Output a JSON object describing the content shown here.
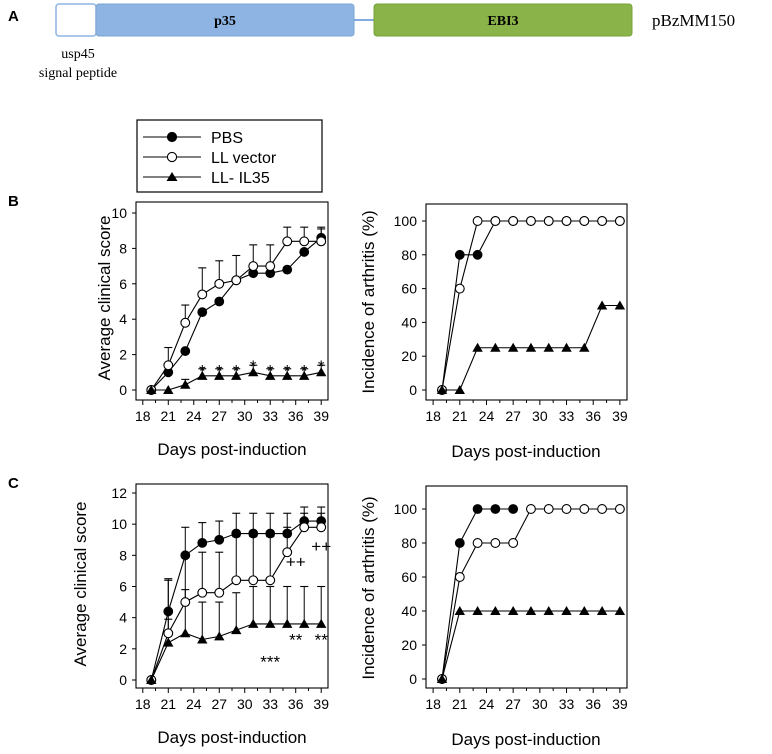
{
  "panel_labels": {
    "a": "A",
    "b": "B",
    "c": "C"
  },
  "construct": {
    "p35_label": "p35",
    "ebi3_label": "EBI3",
    "plasmid_name": "pBzMM150",
    "signal_line1": "usp45",
    "signal_line2": "signal peptide",
    "colors": {
      "signal": "#ffffff",
      "p35": "#8eb4e3",
      "ebi3": "#8ab449",
      "linker": "#5b8fd6"
    }
  },
  "legend": {
    "items": [
      {
        "label": "PBS",
        "marker": "filled-circle"
      },
      {
        "label": "LL vector",
        "marker": "open-circle"
      },
      {
        "label": "LL- IL35",
        "marker": "filled-triangle"
      }
    ]
  },
  "chart_data": [
    {
      "id": "B-score",
      "type": "line",
      "xlabel": "Days post-induction",
      "ylabel": "Average clinical score",
      "ylim": [
        0,
        10
      ],
      "yticks": [
        0,
        2,
        4,
        6,
        8,
        10
      ],
      "xticks": [
        18,
        21,
        24,
        27,
        30,
        33,
        36,
        39
      ],
      "xlim": [
        17.2,
        39.8
      ],
      "series": [
        {
          "name": "PBS",
          "marker": "filled-circle",
          "x": [
            19,
            21,
            23,
            25,
            27,
            29,
            31,
            33,
            35,
            37,
            39
          ],
          "y": [
            0,
            1.0,
            2.2,
            4.4,
            5.0,
            6.2,
            6.6,
            6.6,
            6.8,
            7.8,
            8.6
          ],
          "err": [
            0,
            0,
            0,
            0,
            0,
            0,
            0,
            0,
            0,
            0,
            0.5
          ]
        },
        {
          "name": "LL vector",
          "marker": "open-circle",
          "x": [
            19,
            21,
            23,
            25,
            27,
            29,
            31,
            33,
            35,
            37,
            39
          ],
          "y": [
            0,
            1.4,
            3.8,
            5.4,
            6.0,
            6.2,
            7.0,
            7.0,
            8.4,
            8.4,
            8.4
          ],
          "err": [
            0,
            1.0,
            1.0,
            1.5,
            1.3,
            1.4,
            1.2,
            1.2,
            0.8,
            0.8,
            0.8
          ]
        },
        {
          "name": "LL- IL35",
          "marker": "filled-triangle",
          "x": [
            19,
            21,
            23,
            25,
            27,
            29,
            31,
            33,
            35,
            37,
            39
          ],
          "y": [
            0,
            0,
            0.3,
            0.8,
            0.8,
            0.8,
            1.0,
            0.8,
            0.8,
            0.8,
            1.0
          ],
          "err": [
            0,
            0,
            0.3,
            0.4,
            0.4,
            0.4,
            0.4,
            0.4,
            0.4,
            0.4,
            0.4
          ]
        }
      ],
      "annotations": [
        {
          "text": "*",
          "x": 25,
          "y": 1.1
        },
        {
          "text": "*",
          "x": 27,
          "y": 1.1
        },
        {
          "text": "*",
          "x": 29,
          "y": 1.1
        },
        {
          "text": "*",
          "x": 31,
          "y": 1.35
        },
        {
          "text": "*",
          "x": 33,
          "y": 1.1
        },
        {
          "text": "*",
          "x": 35,
          "y": 1.1
        },
        {
          "text": "*",
          "x": 37,
          "y": 1.1
        },
        {
          "text": "*",
          "x": 39,
          "y": 1.35
        }
      ]
    },
    {
      "id": "B-incidence",
      "type": "line",
      "xlabel": "Days post-induction",
      "ylabel": "Incidence of arthritis (%)",
      "ylim": [
        0,
        100
      ],
      "yticks": [
        0,
        20,
        40,
        60,
        80,
        100
      ],
      "xticks": [
        18,
        21,
        24,
        27,
        30,
        33,
        36,
        39
      ],
      "xlim": [
        17.2,
        39.8
      ],
      "series": [
        {
          "name": "PBS",
          "marker": "filled-circle",
          "x": [
            19,
            21,
            23,
            25,
            27,
            29,
            31,
            33,
            35,
            37,
            39
          ],
          "y": [
            0,
            80,
            80,
            100,
            100,
            100,
            100,
            100,
            100,
            100,
            100
          ]
        },
        {
          "name": "LL vector",
          "marker": "open-circle",
          "x": [
            19,
            21,
            23,
            25,
            27,
            29,
            31,
            33,
            35,
            37,
            39
          ],
          "y": [
            0,
            60,
            100,
            100,
            100,
            100,
            100,
            100,
            100,
            100,
            100
          ]
        },
        {
          "name": "LL- IL35",
          "marker": "filled-triangle",
          "x": [
            19,
            21,
            23,
            25,
            27,
            29,
            31,
            33,
            35,
            37,
            39
          ],
          "y": [
            0,
            0,
            25,
            25,
            25,
            25,
            25,
            25,
            25,
            50,
            50
          ]
        }
      ],
      "annotations": []
    },
    {
      "id": "C-score",
      "type": "line",
      "xlabel": "Days post-induction",
      "ylabel": "Average clinical score",
      "ylim": [
        0,
        12
      ],
      "yticks": [
        0,
        2,
        4,
        6,
        8,
        10,
        12
      ],
      "xticks": [
        18,
        21,
        24,
        27,
        30,
        33,
        36,
        39
      ],
      "xlim": [
        17.2,
        39.8
      ],
      "series": [
        {
          "name": "PBS",
          "marker": "filled-circle",
          "x": [
            19,
            21,
            23,
            25,
            27,
            29,
            31,
            33,
            35,
            37,
            39
          ],
          "y": [
            0,
            4.4,
            8.0,
            8.8,
            9.0,
            9.4,
            9.4,
            9.4,
            9.4,
            10.2,
            10.2
          ],
          "err": [
            0,
            2.0,
            1.8,
            1.3,
            1.2,
            1.3,
            1.3,
            1.3,
            1.3,
            0.9,
            0.9
          ]
        },
        {
          "name": "LL vector",
          "marker": "open-circle",
          "x": [
            19,
            21,
            23,
            25,
            27,
            29,
            31,
            33,
            35,
            37,
            39
          ],
          "y": [
            0,
            3.0,
            5.0,
            5.6,
            5.6,
            6.4,
            6.4,
            6.4,
            8.2,
            9.8,
            9.8
          ],
          "err": [
            0,
            3.5,
            3.0,
            2.6,
            2.6,
            2.8,
            2.8,
            2.8,
            1.6,
            0.9,
            0.9
          ]
        },
        {
          "name": "LL- IL35",
          "marker": "filled-triangle",
          "x": [
            19,
            21,
            23,
            25,
            27,
            29,
            31,
            33,
            35,
            37,
            39
          ],
          "y": [
            0,
            2.4,
            3.0,
            2.6,
            2.8,
            3.2,
            3.6,
            3.6,
            3.6,
            3.6,
            3.6
          ],
          "err": [
            0,
            1.5,
            2.8,
            2.4,
            2.2,
            2.4,
            2.4,
            2.4,
            2.4,
            2.4,
            2.4
          ]
        }
      ],
      "annotations": [
        {
          "text": "++",
          "x": 36,
          "y": 7.6
        },
        {
          "text": "++",
          "x": 39,
          "y": 8.6
        },
        {
          "text": "**",
          "x": 36,
          "y": 2.6
        },
        {
          "text": "**",
          "x": 39,
          "y": 2.6
        },
        {
          "text": "***",
          "x": 33,
          "y": 1.2
        }
      ]
    },
    {
      "id": "C-incidence",
      "type": "line",
      "xlabel": "Days post-induction",
      "ylabel": "Incidence of arthritis (%)",
      "ylim": [
        0,
        100
      ],
      "yticks": [
        0,
        20,
        40,
        60,
        80,
        100
      ],
      "xticks": [
        18,
        21,
        24,
        27,
        30,
        33,
        36,
        39
      ],
      "xlim": [
        17.2,
        39.8
      ],
      "series": [
        {
          "name": "PBS",
          "marker": "filled-circle",
          "x": [
            19,
            21,
            23,
            25,
            27
          ],
          "y": [
            0,
            80,
            100,
            100,
            100
          ]
        },
        {
          "name": "LL vector",
          "marker": "open-circle",
          "x": [
            19,
            21,
            23,
            25,
            27,
            29,
            31,
            33,
            35,
            37,
            39
          ],
          "y": [
            0,
            60,
            80,
            80,
            80,
            100,
            100,
            100,
            100,
            100,
            100
          ]
        },
        {
          "name": "LL- IL35",
          "marker": "filled-triangle",
          "x": [
            19,
            21,
            23,
            25,
            27,
            29,
            31,
            33,
            35,
            37,
            39
          ],
          "y": [
            0,
            40,
            40,
            40,
            40,
            40,
            40,
            40,
            40,
            40,
            40
          ]
        }
      ],
      "annotations": []
    }
  ]
}
